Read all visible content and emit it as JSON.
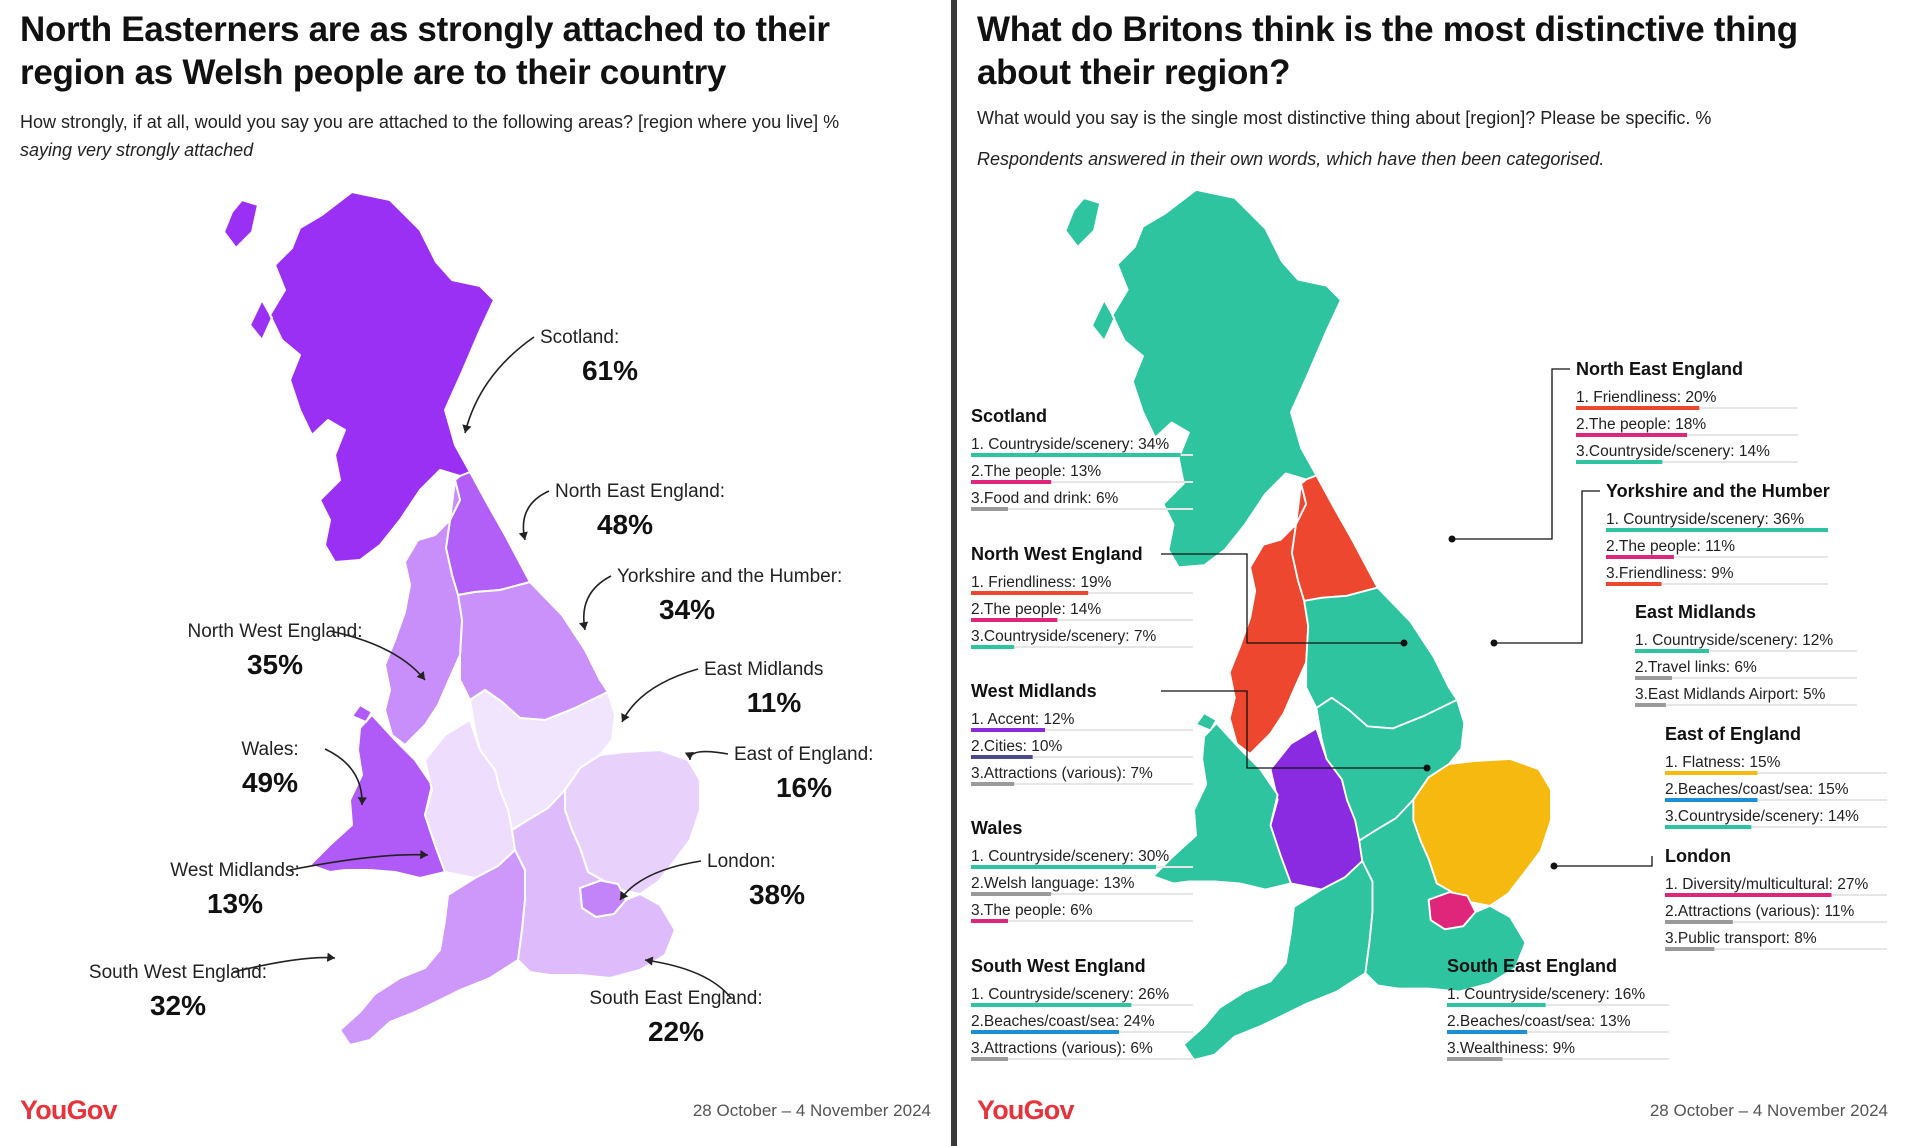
{
  "left": {
    "title": "North Easterners are as strongly attached to their region as Welsh people are to their country",
    "question": "How strongly, if at all, would you say you are attached to the following areas? [region where you live] %",
    "question_note": "saying very strongly attached",
    "logo": "YouGov",
    "date": "28 October – 4 November 2024"
  },
  "right": {
    "title": "What do Britons think is the most distinctive thing about their region?",
    "question": "What would you say is the single most distinctive thing about [region]? Please be specific. %",
    "note": "Respondents answered in their own words, which have then been categorised.",
    "logo": "YouGov",
    "date": "28 October – 4 November 2024"
  },
  "category_colors": {
    "Countryside/scenery": "#2ec4a0",
    "The people": "#e0267a",
    "Friendliness": "#ee4730",
    "Food and drink": "#9a9a9a",
    "Travel links": "#9a9a9a",
    "East Midlands Airport": "#9a9a9a",
    "Accent": "#8a2be2",
    "Cities": "#4b4b8a",
    "Attractions (various)": "#9a9a9a",
    "Welsh language": "#9a9a9a",
    "Flatness": "#f5b90f",
    "Beaches/coast/sea": "#1e8fd6",
    "Diversity/multicultural": "#e0267a",
    "Public transport": "#9a9a9a",
    "Wealthiness": "#9a9a9a"
  },
  "chart_data": [
    {
      "type": "choropleth-map",
      "title": "North Easterners are as strongly attached to their region as Welsh people are to their country",
      "unit": "%",
      "colors": {
        "high": "#9b30f5",
        "low": "#f1e4fd"
      },
      "regions": [
        {
          "name": "Scotland:",
          "value": 61
        },
        {
          "name": "North East England:",
          "value": 48
        },
        {
          "name": "Yorkshire and the Humber:",
          "value": 34
        },
        {
          "name": "North West England:",
          "value": 35
        },
        {
          "name": "East Midlands",
          "value": 11
        },
        {
          "name": "Wales:",
          "value": 49
        },
        {
          "name": "East of England:",
          "value": 16
        },
        {
          "name": "West Midlands:",
          "value": 13
        },
        {
          "name": "London:",
          "value": 38
        },
        {
          "name": "South West England:",
          "value": 32
        },
        {
          "name": "South East England:",
          "value": 22
        }
      ]
    },
    {
      "type": "categorical-map",
      "title": "What do Britons think is the most distinctive thing about their region?",
      "unit": "%",
      "regions": [
        {
          "name": "Scotland",
          "top": [
            [
              "1. Countryside/scenery",
              34,
              "Countryside/scenery"
            ],
            [
              "2.The people",
              13,
              "The people"
            ],
            [
              "3.Food and drink",
              6,
              "Food and drink"
            ]
          ]
        },
        {
          "name": "North West England",
          "top": [
            [
              "1. Friendliness",
              19,
              "Friendliness"
            ],
            [
              "2.The people",
              14,
              "The people"
            ],
            [
              "3.Countryside/scenery",
              7,
              "Countryside/scenery"
            ]
          ]
        },
        {
          "name": "West Midlands",
          "top": [
            [
              "1. Accent",
              12,
              "Accent"
            ],
            [
              "2.Cities",
              10,
              "Cities"
            ],
            [
              "3.Attractions (various)",
              7,
              "Attractions (various)"
            ]
          ]
        },
        {
          "name": "Wales",
          "top": [
            [
              "1. Countryside/scenery",
              30,
              "Countryside/scenery"
            ],
            [
              "2.Welsh language",
              13,
              "Welsh language"
            ],
            [
              "3.The people",
              6,
              "The people"
            ]
          ]
        },
        {
          "name": "South West England",
          "top": [
            [
              "1. Countryside/scenery",
              26,
              "Countryside/scenery"
            ],
            [
              "2.Beaches/coast/sea",
              24,
              "Beaches/coast/sea"
            ],
            [
              "3.Attractions (various)",
              6,
              "Attractions (various)"
            ]
          ]
        },
        {
          "name": "North East England",
          "top": [
            [
              "1. Friendliness",
              20,
              "Friendliness"
            ],
            [
              "2.The people",
              18,
              "The people"
            ],
            [
              "3.Countryside/scenery",
              14,
              "Countryside/scenery"
            ]
          ]
        },
        {
          "name": "Yorkshire and the Humber",
          "top": [
            [
              "1. Countryside/scenery",
              36,
              "Countryside/scenery"
            ],
            [
              "2.The people",
              11,
              "The people"
            ],
            [
              "3.Friendliness",
              9,
              "Friendliness"
            ]
          ]
        },
        {
          "name": "East Midlands",
          "top": [
            [
              "1. Countryside/scenery",
              12,
              "Countryside/scenery"
            ],
            [
              "2.Travel links",
              6,
              "Travel links"
            ],
            [
              "3.East Midlands Airport",
              5,
              "East Midlands Airport"
            ]
          ]
        },
        {
          "name": "East of England",
          "top": [
            [
              "1. Flatness",
              15,
              "Flatness"
            ],
            [
              "2.Beaches/coast/sea",
              15,
              "Beaches/coast/sea"
            ],
            [
              "3.Countryside/scenery",
              14,
              "Countryside/scenery"
            ]
          ]
        },
        {
          "name": "London",
          "top": [
            [
              "1. Diversity/multicultural",
              27,
              "Diversity/multicultural"
            ],
            [
              "2.Attractions (various)",
              11,
              "Attractions (various)"
            ],
            [
              "3.Public transport",
              8,
              "Public transport"
            ]
          ]
        },
        {
          "name": "South East England",
          "top": [
            [
              "1. Countryside/scenery",
              16,
              "Countryside/scenery"
            ],
            [
              "2.Beaches/coast/sea",
              13,
              "Beaches/coast/sea"
            ],
            [
              "3.Wealthiness",
              9,
              "Wealthiness"
            ]
          ]
        }
      ]
    }
  ]
}
